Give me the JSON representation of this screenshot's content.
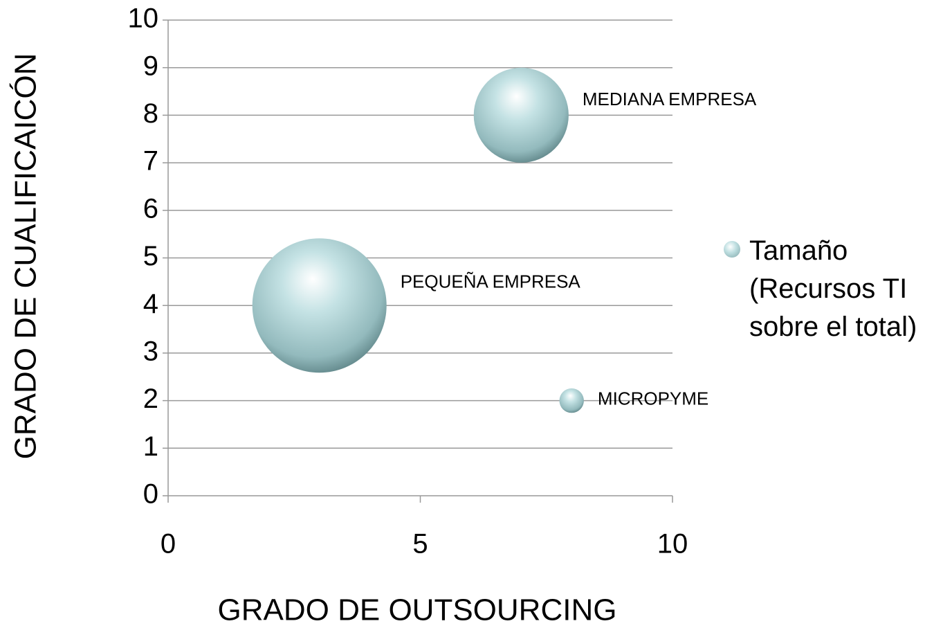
{
  "chart_data": {
    "type": "bubble",
    "xlabel": "GRADO DE OUTSOURCING",
    "ylabel": "GRADO DE CUALIFICAICÓN",
    "series": [
      {
        "name": "Tamaño (Recursos TI sobre el total)",
        "color": "#a9cfd2",
        "x": [
          3,
          7,
          8
        ],
        "y": [
          4,
          8,
          2
        ],
        "sizes": [
          60,
          30,
          2
        ],
        "labels": [
          "PEQUEÑA EMPRESA",
          "MEDIANA EMPRESA",
          "MICROPYME"
        ]
      }
    ],
    "xlim": [
      0,
      10
    ],
    "xticks": [
      0,
      5,
      10
    ],
    "ylim": [
      0,
      10
    ],
    "yticks": [
      0,
      1,
      2,
      3,
      4,
      5,
      6,
      7,
      8,
      9,
      10
    ],
    "grid": true,
    "legend": "right"
  }
}
